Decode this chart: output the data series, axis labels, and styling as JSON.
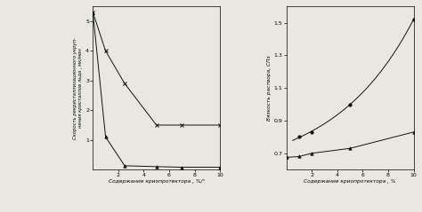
{
  "left_chart": {
    "ylabel": "Скорость рекристаллизационного укруп-\nнения кристаллов льда , мк/мин",
    "xlabel": "Содержание криопротектора , %/°",
    "xlim": [
      0,
      10
    ],
    "ylim": [
      0,
      5.5
    ],
    "yticks": [
      1,
      2,
      3,
      4,
      5
    ],
    "xticks": [
      2,
      4,
      6,
      8,
      10
    ],
    "curve1_x": [
      0,
      1,
      2.5,
      5,
      7,
      10
    ],
    "curve1_y": [
      5.3,
      1.1,
      0.13,
      0.1,
      0.08,
      0.08
    ],
    "curve2_x": [
      0,
      1,
      2.5,
      5,
      7,
      10
    ],
    "curve2_y": [
      5.3,
      4.0,
      2.9,
      1.5,
      1.5,
      1.5
    ]
  },
  "right_chart": {
    "ylabel": "Вязкость раствора, СПз",
    "xlabel": "Содержание криопротектора , %",
    "xlim": [
      0,
      10
    ],
    "ylim": [
      0.6,
      1.6
    ],
    "yticks": [
      0.7,
      0.9,
      1.1,
      1.3,
      1.5
    ],
    "xticks": [
      2,
      4,
      6,
      8,
      10
    ],
    "curve1_x": [
      0,
      1,
      2,
      5,
      10
    ],
    "curve1_y": [
      0.675,
      0.68,
      0.7,
      0.73,
      0.83
    ],
    "curve2_x": [
      1,
      2,
      5,
      10
    ],
    "curve2_y": [
      0.8,
      0.83,
      1.0,
      1.52
    ]
  },
  "bg_color": "#e8e8e0",
  "line_color": "#111111"
}
